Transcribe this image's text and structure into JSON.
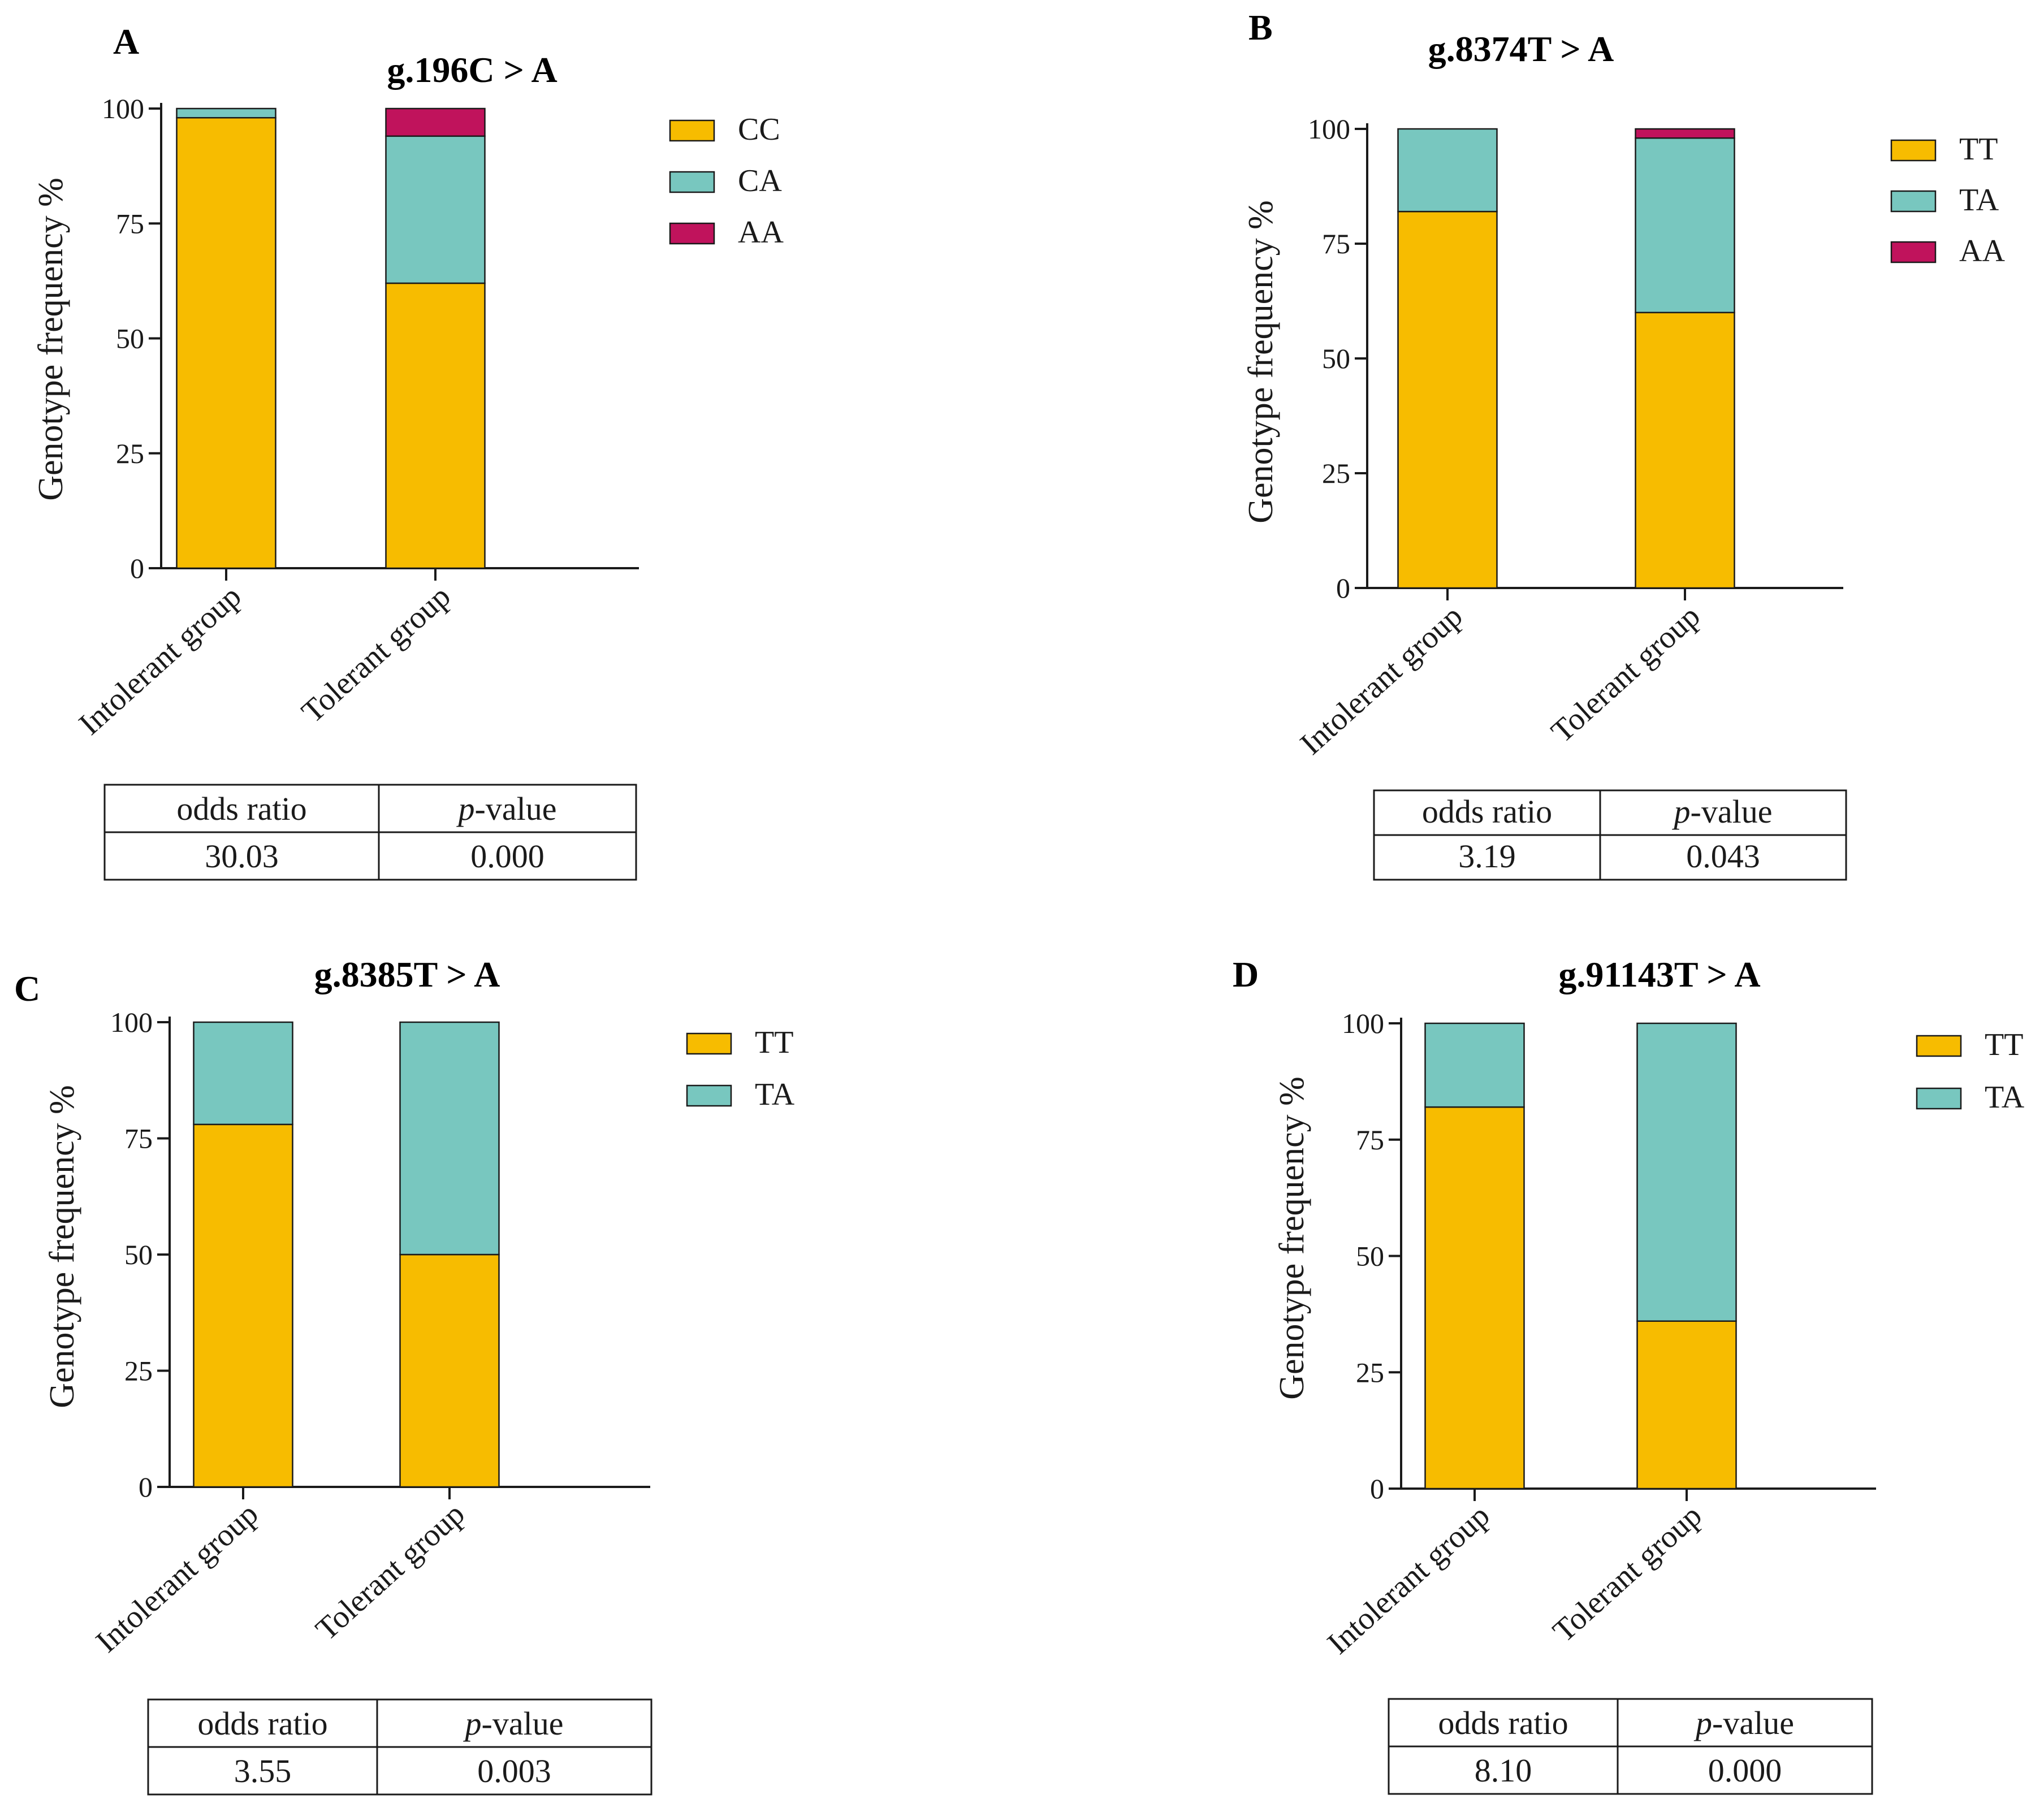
{
  "colors": {
    "CC": "#f7bc00",
    "TT": "#f7bc00",
    "CA": "#78c7bf",
    "TA": "#78c7bf",
    "AA": "#c0135c"
  },
  "chart_data": [
    {
      "panel": "A",
      "type": "bar",
      "stacked": true,
      "title": "g.196C > A",
      "ylabel": "Genotype frequency %",
      "ylim": [
        0,
        100
      ],
      "yticks": [
        "0",
        "25",
        "50",
        "75",
        "100"
      ],
      "categories": [
        "Intolerant group",
        "Tolerant group"
      ],
      "series": [
        {
          "name": "CC",
          "values": [
            98,
            62
          ]
        },
        {
          "name": "CA",
          "values": [
            2,
            32
          ]
        },
        {
          "name": "AA",
          "values": [
            0,
            6
          ]
        }
      ],
      "legend": [
        "CC",
        "CA",
        "AA"
      ],
      "stats": {
        "header": [
          "odds ratio",
          "p",
          "-value"
        ],
        "odds_ratio": "30.03",
        "p_value": "0.000"
      }
    },
    {
      "panel": "B",
      "type": "bar",
      "stacked": true,
      "title": "g.8374T > A",
      "ylabel": "Genotype frequency %",
      "ylim": [
        0,
        100
      ],
      "yticks": [
        "0",
        "25",
        "50",
        "75",
        "100"
      ],
      "categories": [
        "Intolerant group",
        "Tolerant group"
      ],
      "series": [
        {
          "name": "TT",
          "values": [
            82,
            60
          ]
        },
        {
          "name": "TA",
          "values": [
            18,
            38
          ]
        },
        {
          "name": "AA",
          "values": [
            0,
            2
          ]
        }
      ],
      "legend": [
        "TT",
        "TA",
        "AA"
      ],
      "stats": {
        "header": [
          "odds ratio",
          "p",
          "-value"
        ],
        "odds_ratio": "3.19",
        "p_value": "0.043"
      }
    },
    {
      "panel": "C",
      "type": "bar",
      "stacked": true,
      "title": "g.8385T > A",
      "ylabel": "Genotype frequency %",
      "ylim": [
        0,
        100
      ],
      "yticks": [
        "0",
        "25",
        "50",
        "75",
        "100"
      ],
      "categories": [
        "Intolerant group",
        "Tolerant group"
      ],
      "series": [
        {
          "name": "TT",
          "values": [
            78,
            50
          ]
        },
        {
          "name": "TA",
          "values": [
            22,
            50
          ]
        }
      ],
      "legend": [
        "TT",
        "TA"
      ],
      "stats": {
        "header": [
          "odds ratio",
          "p",
          "-value"
        ],
        "odds_ratio": "3.55",
        "p_value": "0.003"
      }
    },
    {
      "panel": "D",
      "type": "bar",
      "stacked": true,
      "title": "g.91143T > A",
      "ylabel": "Genotype frequency %",
      "ylim": [
        0,
        100
      ],
      "yticks": [
        "0",
        "25",
        "50",
        "75",
        "100"
      ],
      "categories": [
        "Intolerant group",
        "Tolerant group"
      ],
      "series": [
        {
          "name": "TT",
          "values": [
            82,
            36
          ]
        },
        {
          "name": "TA",
          "values": [
            18,
            64
          ]
        }
      ],
      "legend": [
        "TT",
        "TA"
      ],
      "stats": {
        "header": [
          "odds ratio",
          "p",
          "-value"
        ],
        "odds_ratio": "8.10",
        "p_value": "0.000"
      }
    }
  ]
}
